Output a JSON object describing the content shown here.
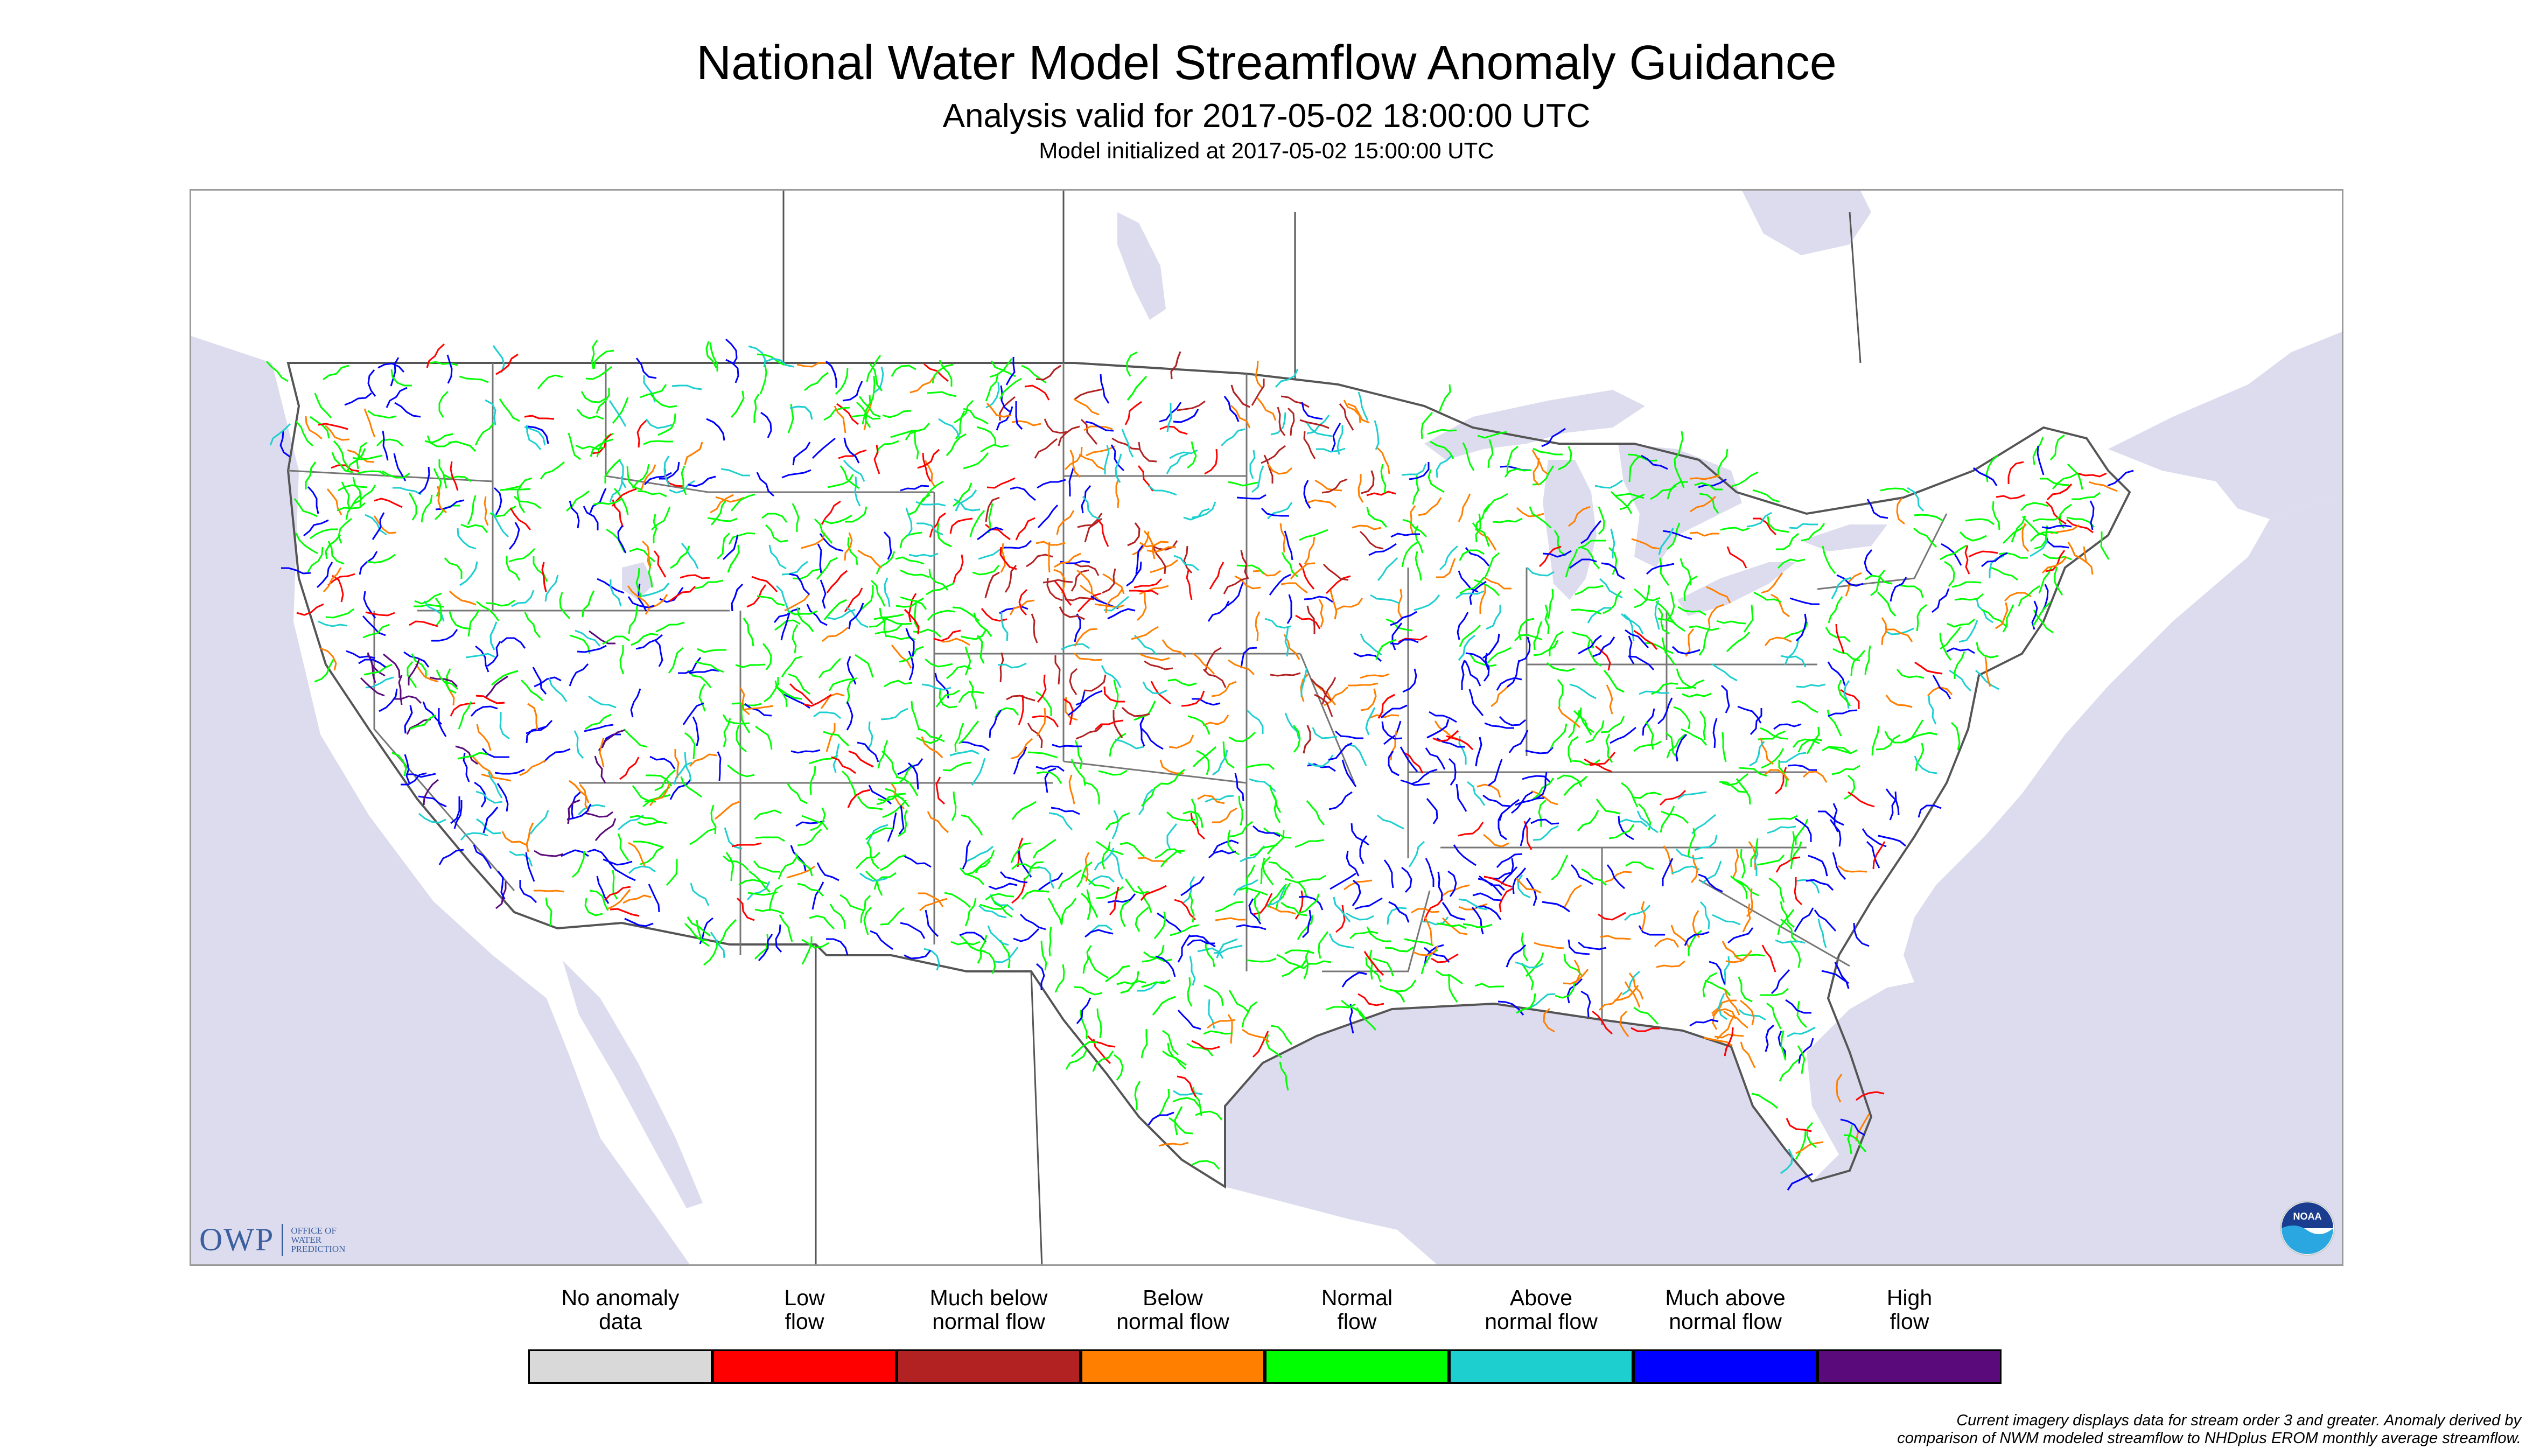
{
  "header": {
    "title": "National Water Model Streamflow Anomaly Guidance",
    "analysis_line": "Analysis valid for 2017-05-02 18:00:00 UTC",
    "init_line": "Model initialized at 2017-05-02 15:00:00 UTC"
  },
  "map": {
    "region": "Contiguous United States",
    "colors": {
      "water": "#dcdcee",
      "land": "#ffffff",
      "border": "#555555"
    }
  },
  "branding": {
    "owp_mark": "OWP",
    "owp_text": [
      "OFFICE OF",
      "WATER",
      "PREDICTION"
    ],
    "noaa_text": "NOAA"
  },
  "legend": {
    "items": [
      {
        "line1": "No anomaly",
        "line2": "data",
        "color": "#d9d9d9"
      },
      {
        "line1": "Low",
        "line2": "flow",
        "color": "#ff0000"
      },
      {
        "line1": "Much below",
        "line2": "normal flow",
        "color": "#b22222"
      },
      {
        "line1": "Below",
        "line2": "normal flow",
        "color": "#ff7f00"
      },
      {
        "line1": "Normal",
        "line2": "flow",
        "color": "#00ff00"
      },
      {
        "line1": "Above",
        "line2": "normal flow",
        "color": "#1ecfcf"
      },
      {
        "line1": "Much above",
        "line2": "normal flow",
        "color": "#0000ff"
      },
      {
        "line1": "High",
        "line2": "flow",
        "color": "#5a0a7a"
      }
    ]
  },
  "footnote": {
    "line1": "Current imagery displays data for stream order 3 and greater. Anomaly derived by",
    "line2": "comparison of NWM modeled streamflow to NHDplus EROM monthly average streamflow."
  }
}
